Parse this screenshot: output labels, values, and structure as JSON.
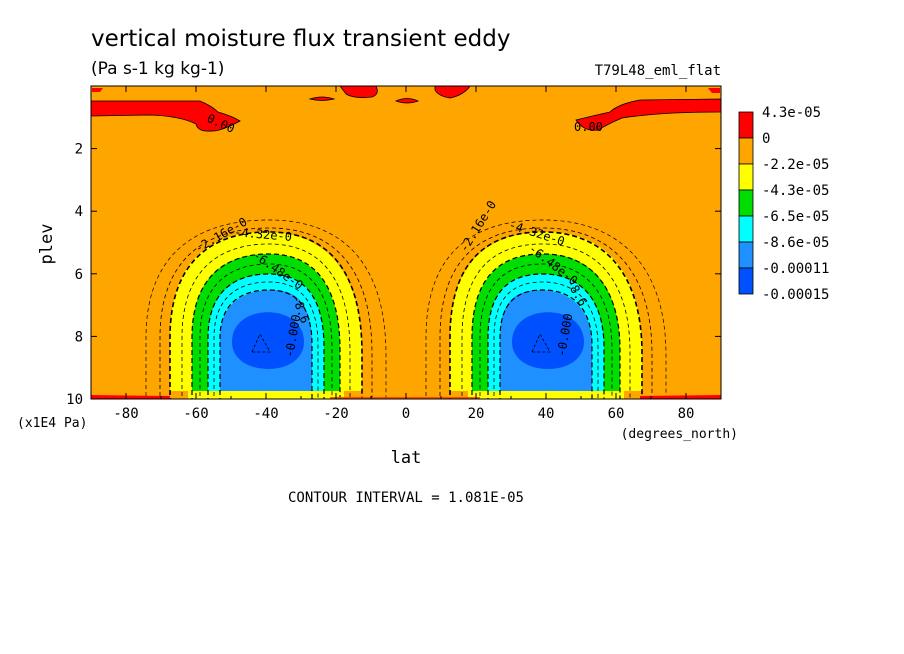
{
  "chart_data": {
    "type": "heatmap",
    "title": "vertical moisture flux transient eddy",
    "subtitle": "(Pa s-1 kg kg-1)",
    "run_label": "T79L48_eml_flat",
    "xlabel": "lat",
    "x_units": "(degrees_north)",
    "ylabel": "plev",
    "y_units": "(x1E4 Pa)",
    "xlim": [
      -90,
      90
    ],
    "ylim": [
      0,
      10
    ],
    "y_inverted": true,
    "x_ticks": [
      "-80",
      "-60",
      "-40",
      "-20",
      "0",
      "20",
      "40",
      "60",
      "80"
    ],
    "x_tick_values": [
      -80,
      -60,
      -40,
      -20,
      0,
      20,
      40,
      60,
      80
    ],
    "y_ticks": [
      "2",
      "4",
      "6",
      "8",
      "10"
    ],
    "y_tick_values": [
      2,
      4,
      6,
      8,
      10
    ],
    "contour_interval": "CONTOUR INTERVAL = 1.081E-05",
    "colorbar": {
      "labels": [
        "4.3e-05",
        "0",
        "-2.2e-05",
        "-4.3e-05",
        "-6.5e-05",
        "-8.6e-05",
        "-0.00011",
        "-0.00015"
      ],
      "colors": [
        "#ff0000",
        "#ffa500",
        "#ffff00",
        "#00dd00",
        "#00ffff",
        "#1e90ff",
        "#0050ff"
      ]
    },
    "contour_labels": [
      "0.00",
      "0.00",
      "-2.16e-0",
      "-4.32e-0",
      "-6.48e-0",
      "-8.6",
      "-0.000",
      "-2.16e-0",
      "-4.32e-0",
      "-6.48e-0",
      "-8.6",
      "-0.000"
    ],
    "features": {
      "background_color": "#ffa500",
      "cells": [
        {
          "name": "sh-cell",
          "lat_center": -40,
          "plev_center": 8.1,
          "min_value": -0.00015
        },
        {
          "name": "nh-cell",
          "lat_center": 40,
          "plev_center": 8.1,
          "min_value": -0.00015
        }
      ]
    }
  }
}
